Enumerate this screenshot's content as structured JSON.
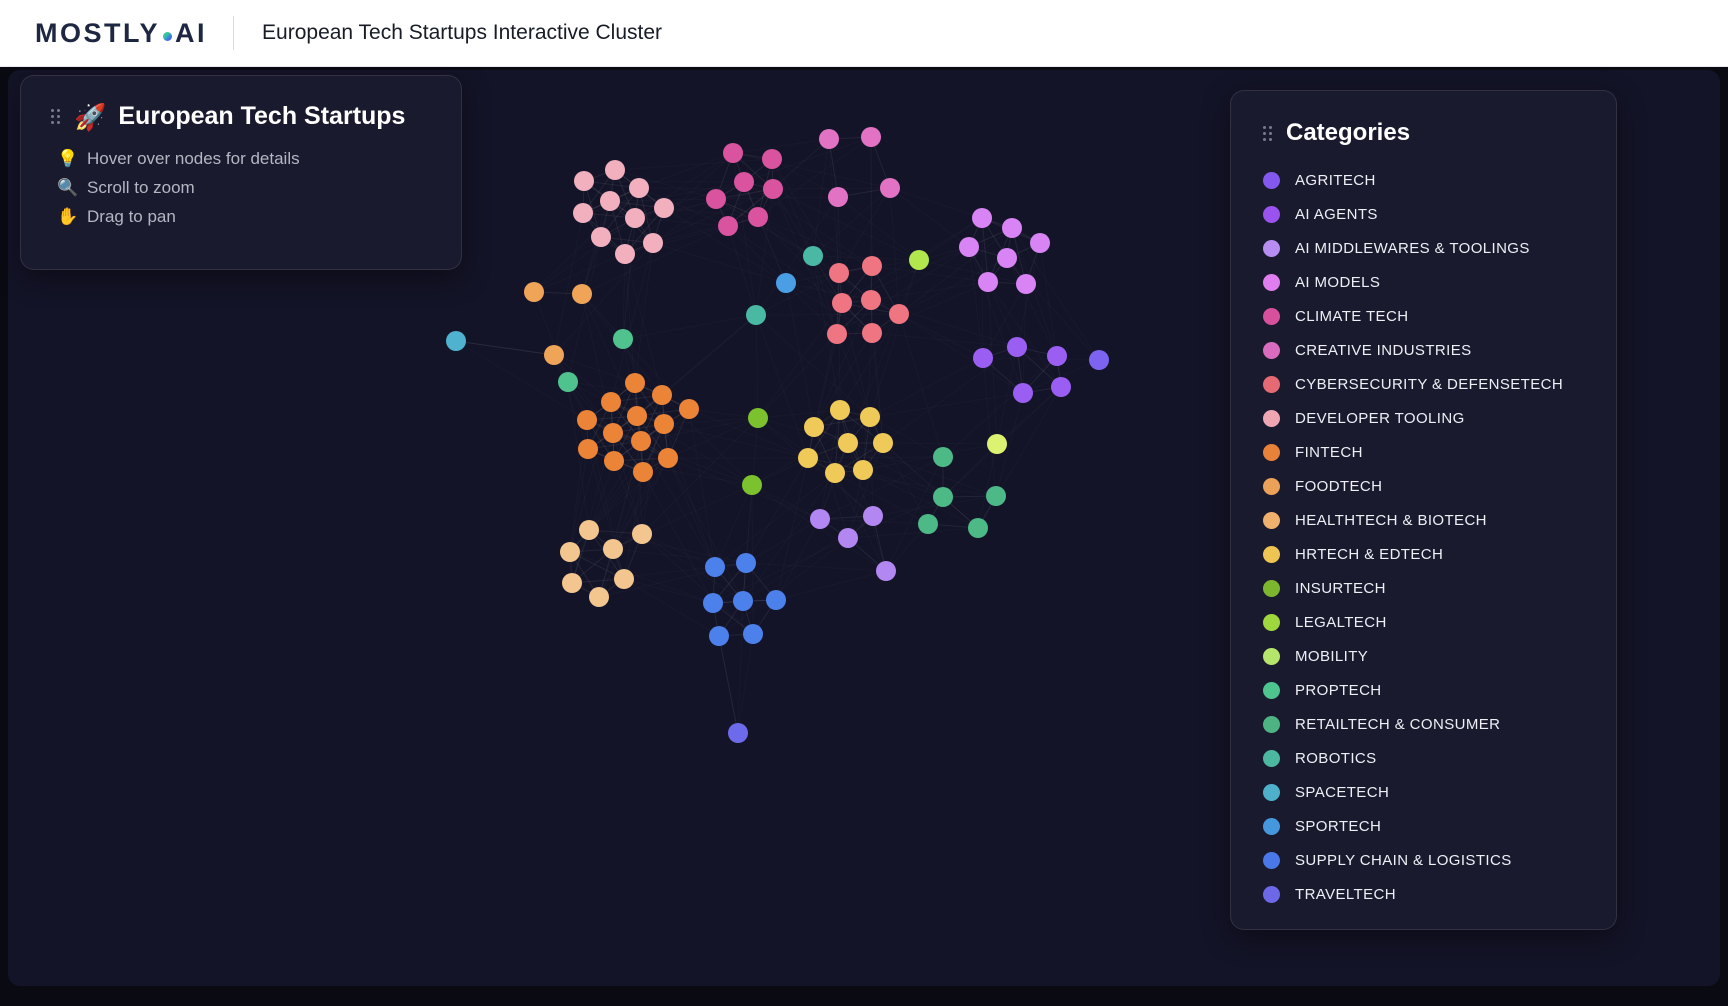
{
  "header": {
    "logo_text": "MOSTLY",
    "logo_suffix": "AI",
    "title": "European Tech Startups Interactive Cluster"
  },
  "info_panel": {
    "icon": "🚀",
    "title": "European Tech Startups",
    "instructions": [
      {
        "icon": "💡",
        "text": "Hover over nodes for details"
      },
      {
        "icon": "🔍",
        "text": "Scroll to zoom"
      },
      {
        "icon": "✋",
        "text": "Drag to pan"
      }
    ]
  },
  "legend": {
    "title": "Categories",
    "items": [
      {
        "label": "AGRITECH",
        "color": "#8458EE"
      },
      {
        "label": "AI AGENTS",
        "color": "#9A53EE"
      },
      {
        "label": "AI MIDDLEWARES & TOOLINGS",
        "color": "#B88DF2"
      },
      {
        "label": "AI MODELS",
        "color": "#E07DF0"
      },
      {
        "label": "CLIMATE TECH",
        "color": "#D6509C"
      },
      {
        "label": "CREATIVE INDUSTRIES",
        "color": "#DA6CC0"
      },
      {
        "label": "CYBERSECURITY & DEFENSETECH",
        "color": "#E66A73"
      },
      {
        "label": "DEVELOPER TOOLING",
        "color": "#EDA6B2"
      },
      {
        "label": "FINTECH",
        "color": "#E8813A"
      },
      {
        "label": "FOODTECH",
        "color": "#ECA158"
      },
      {
        "label": "HEALTHTECH & BIOTECH",
        "color": "#EFB06E"
      },
      {
        "label": "HRTECH & EDTECH",
        "color": "#EEC452"
      },
      {
        "label": "INSURTECH",
        "color": "#7CB62F"
      },
      {
        "label": "LEGALTECH",
        "color": "#9ED83D"
      },
      {
        "label": "MOBILITY",
        "color": "#B5E56A"
      },
      {
        "label": "PROPTECH",
        "color": "#4EC48E"
      },
      {
        "label": "RETAILTECH & CONSUMER",
        "color": "#4DB382"
      },
      {
        "label": "ROBOTICS",
        "color": "#4CB8A0"
      },
      {
        "label": "SPACETECH",
        "color": "#4FB0CC"
      },
      {
        "label": "SPORTECH",
        "color": "#4598DD"
      },
      {
        "label": "SUPPLY CHAIN & LOGISTICS",
        "color": "#4A78E8"
      },
      {
        "label": "TRAVELTECH",
        "color": "#6D68E8"
      }
    ]
  },
  "chart_data": {
    "type": "scatter",
    "title": "European Tech Startups Interactive Cluster",
    "node_diameter": 20,
    "edge_color": "#ffffff",
    "clusters": [
      {
        "category": "DEVELOPER TOOLING",
        "color": "#F2B0BF",
        "points": [
          [
            584,
            181
          ],
          [
            615,
            170
          ],
          [
            639,
            188
          ],
          [
            583,
            213
          ],
          [
            610,
            201
          ],
          [
            635,
            218
          ],
          [
            664,
            208
          ],
          [
            601,
            237
          ],
          [
            625,
            254
          ],
          [
            653,
            243
          ]
        ]
      },
      {
        "category": "CLIMATE TECH",
        "color": "#D9539F",
        "points": [
          [
            733,
            153
          ],
          [
            772,
            159
          ],
          [
            744,
            182
          ],
          [
            773,
            189
          ],
          [
            716,
            199
          ],
          [
            758,
            217
          ],
          [
            728,
            226
          ]
        ]
      },
      {
        "category": "CREATIVE INDUSTRIES",
        "color": "#E273C4",
        "points": [
          [
            829,
            139
          ],
          [
            871,
            137
          ],
          [
            838,
            197
          ],
          [
            890,
            188
          ]
        ]
      },
      {
        "category": "CYBERSECURITY & DEFENSETECH",
        "color": "#EE7581",
        "points": [
          [
            872,
            266
          ],
          [
            839,
            273
          ],
          [
            842,
            303
          ],
          [
            871,
            300
          ],
          [
            899,
            314
          ],
          [
            837,
            334
          ],
          [
            872,
            333
          ]
        ]
      },
      {
        "category": "AI MODELS",
        "color": "#D884F4",
        "points": [
          [
            982,
            218
          ],
          [
            1012,
            228
          ],
          [
            1040,
            243
          ],
          [
            969,
            247
          ],
          [
            1007,
            258
          ],
          [
            988,
            282
          ],
          [
            1026,
            284
          ]
        ]
      },
      {
        "category": "AI AGENTS",
        "color": "#9A5FF2",
        "points": [
          [
            983,
            358
          ],
          [
            1017,
            347
          ],
          [
            1057,
            356
          ],
          [
            1023,
            393
          ],
          [
            1061,
            387
          ]
        ]
      },
      {
        "category": "AGRITECH",
        "color": "#7D64F0",
        "points": [
          [
            1099,
            360
          ]
        ]
      },
      {
        "category": "LEGALTECH",
        "color": "#B2E84E",
        "points": [
          [
            919,
            260
          ]
        ]
      },
      {
        "category": "MOBILITY",
        "color": "#DCF271",
        "points": [
          [
            997,
            444
          ]
        ]
      },
      {
        "category": "INSURTECH",
        "color": "#7CC22F",
        "points": [
          [
            758,
            418
          ],
          [
            752,
            485
          ]
        ]
      },
      {
        "category": "SPORTECH",
        "color": "#4A9EE4",
        "points": [
          [
            786,
            283
          ]
        ]
      },
      {
        "category": "ROBOTICS",
        "color": "#4AB9A4",
        "points": [
          [
            813,
            256
          ],
          [
            756,
            315
          ]
        ]
      },
      {
        "category": "SPACETECH",
        "color": "#4FB2CF",
        "points": [
          [
            456,
            341
          ]
        ]
      },
      {
        "category": "FOODTECH",
        "color": "#F0A458",
        "points": [
          [
            534,
            292
          ],
          [
            582,
            294
          ],
          [
            554,
            355
          ]
        ]
      },
      {
        "category": "PROPTECH",
        "color": "#50C28E",
        "points": [
          [
            623,
            339
          ],
          [
            568,
            382
          ]
        ]
      },
      {
        "category": "FINTECH",
        "color": "#EC8438",
        "points": [
          [
            635,
            383
          ],
          [
            662,
            395
          ],
          [
            689,
            409
          ],
          [
            611,
            402
          ],
          [
            637,
            416
          ],
          [
            664,
            424
          ],
          [
            587,
            420
          ],
          [
            613,
            433
          ],
          [
            641,
            441
          ],
          [
            588,
            449
          ],
          [
            614,
            461
          ],
          [
            668,
            458
          ],
          [
            643,
            472
          ]
        ]
      },
      {
        "category": "HEALTHTECH & BIOTECH",
        "color": "#F2C68E",
        "points": [
          [
            589,
            530
          ],
          [
            642,
            534
          ],
          [
            570,
            552
          ],
          [
            613,
            549
          ],
          [
            572,
            583
          ],
          [
            624,
            579
          ],
          [
            599,
            597
          ]
        ]
      },
      {
        "category": "HRTECH & EDTECH",
        "color": "#F0CA58",
        "points": [
          [
            840,
            410
          ],
          [
            814,
            427
          ],
          [
            870,
            417
          ],
          [
            848,
            443
          ],
          [
            883,
            443
          ],
          [
            808,
            458
          ],
          [
            835,
            473
          ],
          [
            863,
            470
          ]
        ]
      },
      {
        "category": "AI MIDDLEWARES & TOOLINGS",
        "color": "#B287F2",
        "points": [
          [
            820,
            519
          ],
          [
            873,
            516
          ],
          [
            848,
            538
          ],
          [
            886,
            571
          ]
        ]
      },
      {
        "category": "RETAILTECH & CONSUMER",
        "color": "#4DB986",
        "points": [
          [
            943,
            457
          ],
          [
            943,
            497
          ],
          [
            996,
            496
          ],
          [
            928,
            524
          ],
          [
            978,
            528
          ]
        ]
      },
      {
        "category": "SUPPLY CHAIN & LOGISTICS",
        "color": "#4C80EA",
        "points": [
          [
            715,
            567
          ],
          [
            746,
            563
          ],
          [
            713,
            603
          ],
          [
            743,
            601
          ],
          [
            776,
            600
          ],
          [
            719,
            636
          ],
          [
            753,
            634
          ]
        ]
      },
      {
        "category": "TRAVELTECH",
        "color": "#6E6AEC",
        "points": [
          [
            738,
            733
          ]
        ]
      }
    ],
    "extra_edges": [
      [
        [
          456,
          341
        ],
        [
          554,
          355
        ]
      ],
      [
        [
          738,
          733
        ],
        [
          719,
          636
        ]
      ]
    ]
  },
  "colors": {
    "canvas_bg": "#141428",
    "header_bg": "#ffffff",
    "panel_bg": "rgba(27,27,47,0.92)",
    "logo_text": "#1e2742"
  }
}
